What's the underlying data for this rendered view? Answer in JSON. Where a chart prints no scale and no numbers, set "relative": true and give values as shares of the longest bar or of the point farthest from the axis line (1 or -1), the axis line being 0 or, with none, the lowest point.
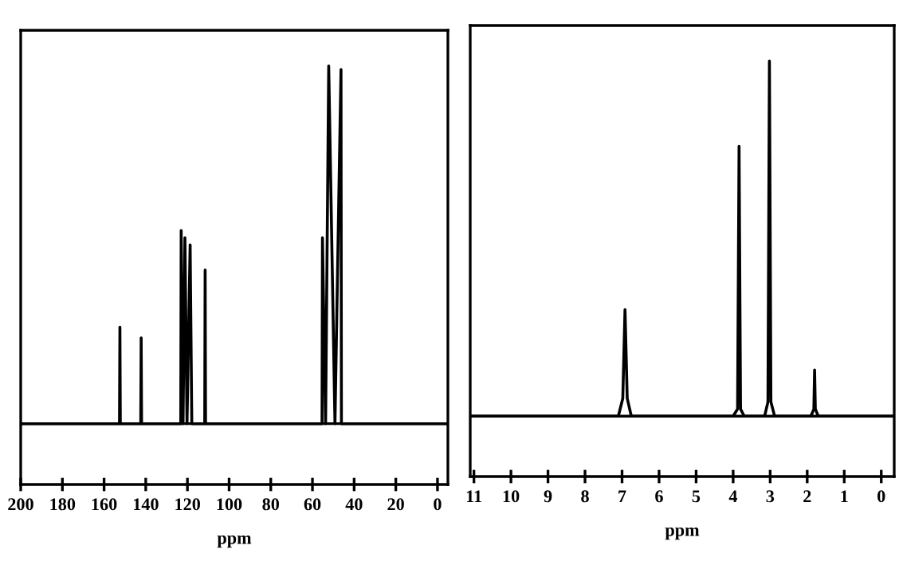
{
  "chart_data": [
    {
      "type": "line",
      "relative": true,
      "xlabel": "ppm",
      "tick_labels": "x",
      "grid": false,
      "marker": "none",
      "line_style": "solid",
      "x": [
        200,
        152.6,
        152.4,
        152.2,
        142.4,
        142.2,
        142.0,
        123.2,
        123.0,
        122.1,
        121.2,
        120.2,
        118.7,
        117.9,
        111.7,
        111.5,
        111.3,
        55.4,
        55.2,
        53.7,
        52.2,
        49.2,
        46.3,
        46.1,
        -5
      ],
      "series": [
        {
          "color": "#000000",
          "values": [
            0,
            0,
            0.27,
            0,
            0,
            0.24,
            0,
            0,
            0.54,
            0,
            0.52,
            0,
            0.5,
            0,
            0,
            0.43,
            0,
            0,
            0.52,
            0,
            1.0,
            0,
            0.99,
            0,
            0
          ]
        }
      ],
      "xlim": [
        200,
        -5
      ],
      "xticks": [
        200,
        180,
        160,
        140,
        120,
        100,
        80,
        60,
        40,
        20,
        0
      ]
    },
    {
      "type": "line",
      "relative": true,
      "xlabel": "ppm",
      "tick_labels": "x",
      "grid": false,
      "marker": "none",
      "line_style": "solid",
      "x": [
        11.1,
        7.1,
        6.98,
        6.92,
        6.86,
        6.75,
        4.0,
        3.88,
        3.84,
        3.8,
        3.7,
        3.15,
        3.06,
        3.02,
        2.98,
        2.88,
        1.9,
        1.82,
        1.8,
        1.78,
        1.7,
        -0.35
      ],
      "series": [
        {
          "color": "#000000",
          "values": [
            0,
            0,
            0.05,
            0.3,
            0.05,
            0,
            0,
            0.02,
            0.76,
            0.02,
            0,
            0,
            0.04,
            1.0,
            0.04,
            0,
            0,
            0.02,
            0.13,
            0.02,
            0,
            0
          ]
        }
      ],
      "xlim": [
        11.1,
        -0.35
      ],
      "xticks": [
        11,
        10,
        9,
        8,
        7,
        6,
        5,
        4,
        3,
        2,
        1,
        0
      ]
    }
  ]
}
